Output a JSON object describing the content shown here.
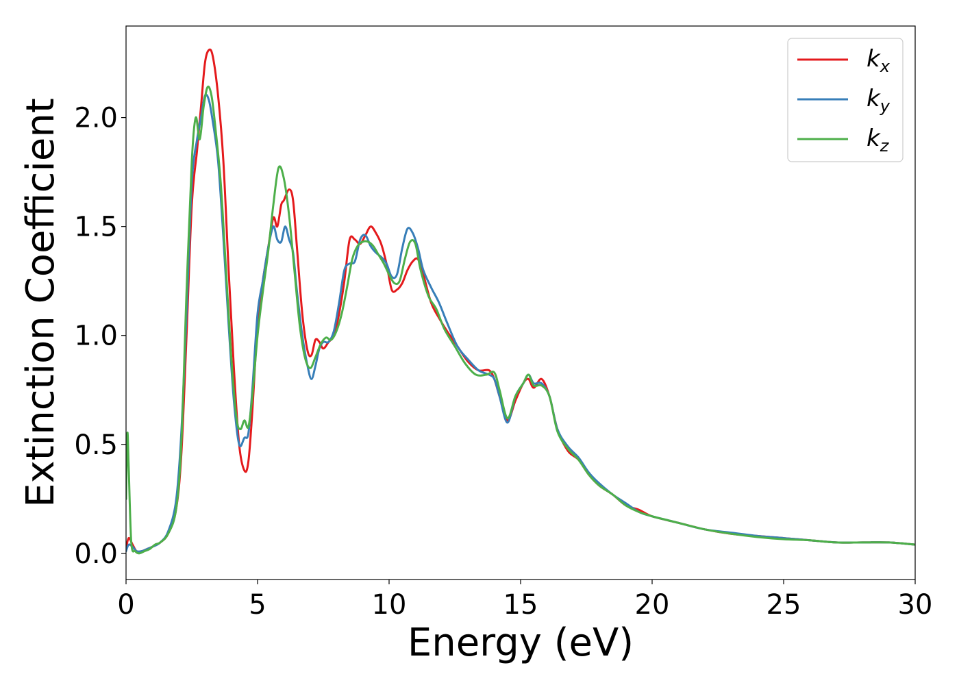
{
  "chart_data": {
    "type": "line",
    "title": "",
    "xlabel": "Energy (eV)",
    "ylabel": "Extinction Coefficient",
    "xlim": [
      0,
      30
    ],
    "ylim": [
      -0.12,
      2.42
    ],
    "xticks": [
      0,
      5,
      10,
      15,
      20,
      25,
      30
    ],
    "xtick_labels": [
      "0",
      "5",
      "10",
      "15",
      "20",
      "25",
      "30"
    ],
    "yticks": [
      0.0,
      0.5,
      1.0,
      1.5,
      2.0
    ],
    "ytick_labels": [
      "0.0",
      "0.5",
      "1.0",
      "1.5",
      "2.0"
    ],
    "grid": false,
    "legend_position": "top-right",
    "series": [
      {
        "name": "k_x",
        "label_main": "k",
        "label_sub": "x",
        "color": "#e41a1c",
        "x": [
          0,
          0.1,
          0.25,
          0.4,
          0.6,
          0.8,
          1.0,
          1.3,
          1.6,
          1.9,
          2.1,
          2.3,
          2.5,
          2.7,
          2.85,
          3.0,
          3.15,
          3.3,
          3.5,
          3.7,
          3.9,
          4.1,
          4.3,
          4.5,
          4.65,
          4.8,
          5.0,
          5.2,
          5.4,
          5.6,
          5.75,
          5.9,
          6.0,
          6.2,
          6.35,
          6.5,
          6.7,
          6.9,
          7.05,
          7.2,
          7.35,
          7.5,
          7.7,
          7.9,
          8.1,
          8.3,
          8.5,
          8.7,
          8.9,
          9.1,
          9.3,
          9.5,
          9.7,
          9.9,
          10.1,
          10.3,
          10.5,
          10.7,
          10.9,
          11.1,
          11.3,
          11.6,
          11.9,
          12.2,
          12.6,
          13.0,
          13.4,
          13.8,
          14.0,
          14.2,
          14.5,
          14.8,
          15.1,
          15.3,
          15.5,
          15.8,
          16.1,
          16.4,
          16.8,
          17.2,
          17.6,
          18.0,
          18.5,
          19.0,
          19.5,
          20,
          21,
          22,
          23,
          24,
          25,
          26,
          27,
          28,
          29,
          30
        ],
        "y": [
          0.02,
          0.07,
          0.04,
          0.01,
          0.01,
          0.02,
          0.03,
          0.05,
          0.09,
          0.2,
          0.45,
          1.0,
          1.6,
          1.85,
          2.05,
          2.25,
          2.31,
          2.28,
          2.1,
          1.8,
          1.3,
          0.85,
          0.5,
          0.38,
          0.42,
          0.65,
          1.05,
          1.25,
          1.4,
          1.54,
          1.5,
          1.6,
          1.62,
          1.67,
          1.62,
          1.4,
          1.1,
          0.93,
          0.91,
          0.98,
          0.97,
          0.94,
          0.97,
          1.0,
          1.1,
          1.25,
          1.44,
          1.44,
          1.42,
          1.46,
          1.5,
          1.47,
          1.42,
          1.33,
          1.21,
          1.21,
          1.24,
          1.3,
          1.34,
          1.35,
          1.28,
          1.15,
          1.08,
          1.02,
          0.95,
          0.88,
          0.84,
          0.84,
          0.8,
          0.72,
          0.61,
          0.7,
          0.78,
          0.8,
          0.76,
          0.8,
          0.72,
          0.57,
          0.47,
          0.43,
          0.36,
          0.31,
          0.27,
          0.22,
          0.2,
          0.17,
          0.14,
          0.11,
          0.09,
          0.08,
          0.07,
          0.06,
          0.05,
          0.05,
          0.05,
          0.04
        ]
      },
      {
        "name": "k_y",
        "label_main": "k",
        "label_sub": "y",
        "color": "#377eb8",
        "x": [
          0,
          0.1,
          0.25,
          0.4,
          0.6,
          0.8,
          1.0,
          1.3,
          1.6,
          1.9,
          2.1,
          2.3,
          2.5,
          2.7,
          2.85,
          3.0,
          3.15,
          3.3,
          3.5,
          3.7,
          3.9,
          4.1,
          4.3,
          4.5,
          4.65,
          4.8,
          5.0,
          5.2,
          5.4,
          5.6,
          5.75,
          5.9,
          6.05,
          6.2,
          6.35,
          6.5,
          6.7,
          6.9,
          7.05,
          7.2,
          7.35,
          7.5,
          7.7,
          7.9,
          8.1,
          8.3,
          8.5,
          8.7,
          8.9,
          9.1,
          9.3,
          9.5,
          9.7,
          9.9,
          10.1,
          10.3,
          10.5,
          10.7,
          10.9,
          11.1,
          11.3,
          11.6,
          11.9,
          12.2,
          12.6,
          13.0,
          13.4,
          13.8,
          14.0,
          14.2,
          14.5,
          14.8,
          15.1,
          15.3,
          15.5,
          15.8,
          16.1,
          16.4,
          16.8,
          17.2,
          17.6,
          18.0,
          18.5,
          19.0,
          19.5,
          20,
          21,
          22,
          23,
          24,
          25,
          26,
          27,
          28,
          29,
          30
        ],
        "y": [
          0.01,
          0.04,
          0.03,
          0.01,
          0.01,
          0.02,
          0.03,
          0.05,
          0.1,
          0.24,
          0.55,
          1.1,
          1.7,
          1.9,
          2.0,
          2.1,
          2.08,
          1.98,
          1.8,
          1.45,
          1.05,
          0.7,
          0.5,
          0.53,
          0.55,
          0.75,
          1.1,
          1.25,
          1.4,
          1.5,
          1.44,
          1.43,
          1.5,
          1.44,
          1.38,
          1.2,
          1.0,
          0.86,
          0.8,
          0.86,
          0.94,
          0.97,
          0.97,
          1.02,
          1.15,
          1.3,
          1.33,
          1.34,
          1.44,
          1.46,
          1.41,
          1.38,
          1.36,
          1.33,
          1.27,
          1.28,
          1.4,
          1.49,
          1.47,
          1.4,
          1.3,
          1.22,
          1.15,
          1.06,
          0.95,
          0.89,
          0.84,
          0.82,
          0.8,
          0.72,
          0.6,
          0.72,
          0.78,
          0.82,
          0.78,
          0.78,
          0.72,
          0.57,
          0.49,
          0.44,
          0.37,
          0.32,
          0.27,
          0.23,
          0.19,
          0.17,
          0.14,
          0.11,
          0.095,
          0.08,
          0.07,
          0.06,
          0.05,
          0.05,
          0.05,
          0.04
        ]
      },
      {
        "name": "k_z",
        "label_main": "k",
        "label_sub": "z",
        "color": "#4daf4a",
        "x": [
          0,
          0.05,
          0.1,
          0.2,
          0.35,
          0.5,
          0.7,
          0.9,
          1.1,
          1.3,
          1.6,
          1.9,
          2.1,
          2.3,
          2.5,
          2.65,
          2.8,
          2.95,
          3.1,
          3.25,
          3.4,
          3.6,
          3.8,
          4.0,
          4.2,
          4.35,
          4.5,
          4.65,
          4.8,
          5.0,
          5.2,
          5.4,
          5.6,
          5.8,
          6.0,
          6.2,
          6.4,
          6.6,
          6.8,
          7.0,
          7.2,
          7.4,
          7.6,
          7.8,
          8.0,
          8.2,
          8.4,
          8.6,
          8.8,
          9.0,
          9.2,
          9.4,
          9.6,
          9.8,
          10.0,
          10.2,
          10.4,
          10.6,
          10.8,
          11.0,
          11.2,
          11.5,
          11.8,
          12.1,
          12.5,
          12.9,
          13.3,
          13.7,
          14.0,
          14.2,
          14.5,
          14.8,
          15.1,
          15.3,
          15.5,
          15.8,
          16.1,
          16.4,
          16.8,
          17.2,
          17.6,
          18.0,
          18.5,
          19.0,
          19.5,
          20,
          21,
          22,
          23,
          24,
          25,
          26,
          27,
          28,
          29,
          30
        ],
        "y": [
          0.25,
          0.55,
          0.4,
          0.05,
          0.01,
          0.0,
          0.01,
          0.02,
          0.04,
          0.05,
          0.09,
          0.2,
          0.5,
          1.2,
          1.8,
          2.0,
          1.9,
          2.05,
          2.14,
          2.1,
          1.95,
          1.7,
          1.3,
          0.9,
          0.62,
          0.57,
          0.61,
          0.58,
          0.72,
          1.0,
          1.2,
          1.38,
          1.6,
          1.77,
          1.72,
          1.55,
          1.3,
          1.05,
          0.9,
          0.85,
          0.9,
          0.96,
          0.99,
          0.98,
          1.02,
          1.1,
          1.22,
          1.35,
          1.41,
          1.43,
          1.43,
          1.41,
          1.37,
          1.33,
          1.28,
          1.24,
          1.25,
          1.35,
          1.43,
          1.42,
          1.3,
          1.18,
          1.12,
          1.03,
          0.95,
          0.87,
          0.82,
          0.82,
          0.83,
          0.75,
          0.62,
          0.72,
          0.78,
          0.82,
          0.77,
          0.77,
          0.72,
          0.56,
          0.48,
          0.43,
          0.36,
          0.31,
          0.27,
          0.22,
          0.19,
          0.17,
          0.14,
          0.11,
          0.09,
          0.075,
          0.065,
          0.06,
          0.05,
          0.05,
          0.05,
          0.04
        ]
      }
    ]
  }
}
